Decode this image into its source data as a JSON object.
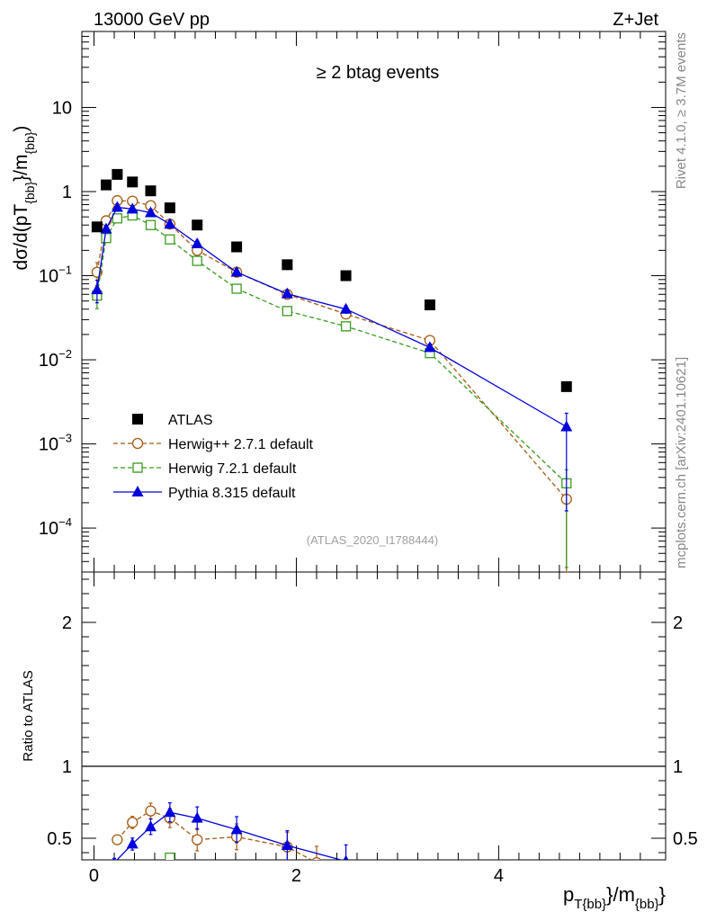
{
  "header": {
    "left": "13000 GeV pp",
    "right": "Z+Jet"
  },
  "side_text": {
    "rivet": "Rivet 4.1.0, ≥ 3.7M events",
    "mcplots": "mcplots.cern.ch [arXiv:2401.10621]"
  },
  "colors": {
    "atlas": "#000000",
    "herwigpp": "#a65a12",
    "herwig7": "#3a9a1e",
    "pythia": "#0000dd"
  },
  "chart_data": [
    {
      "type": "scatter",
      "title": "≥ 2 btag events",
      "analysis_tag": "(ATLAS_2020_I1788444)",
      "ylabel_parts": [
        "dσ/d(pT",
        "{bb}",
        "}/m",
        "{bb}",
        ")"
      ],
      "xlabel_parts": [
        "p",
        "T{bb}",
        "}/m",
        "{bb}",
        "}"
      ],
      "yscale": "log",
      "xlim": [
        -0.12,
        5.65
      ],
      "ylim": [
        3e-05,
        80
      ],
      "y_ticks": [
        {
          "value": 10,
          "base": "10",
          "exp": ""
        },
        {
          "value": 1,
          "base": "1",
          "exp": ""
        },
        {
          "value": 0.1,
          "base": "10",
          "exp": "−1"
        },
        {
          "value": 0.01,
          "base": "10",
          "exp": "−2"
        },
        {
          "value": 0.001,
          "base": "10",
          "exp": "−3"
        },
        {
          "value": 0.0001,
          "base": "10",
          "exp": "−4"
        }
      ],
      "legend": [
        {
          "key": "atlas",
          "label": "ATLAS"
        },
        {
          "key": "herwigpp",
          "label": "Herwig++ 2.7.1 default"
        },
        {
          "key": "herwig7",
          "label": "Herwig 7.2.1 default"
        },
        {
          "key": "pythia",
          "label": "Pythia 8.315 default"
        }
      ],
      "series": [
        {
          "key": "atlas",
          "name": "ATLAS",
          "marker": "square",
          "x": [
            0.03,
            0.12,
            0.23,
            0.38,
            0.56,
            0.75,
            1.02,
            1.41,
            1.91,
            2.49,
            3.32,
            4.67
          ],
          "y": [
            0.38,
            1.2,
            1.6,
            1.3,
            1.02,
            0.64,
            0.4,
            0.22,
            0.135,
            0.1,
            0.045,
            0.0048
          ]
        },
        {
          "key": "herwigpp",
          "name": "Herwig++ 2.7.1 default",
          "marker": "circle",
          "x": [
            0.03,
            0.12,
            0.23,
            0.38,
            0.56,
            0.75,
            1.02,
            1.41,
            1.91,
            2.49,
            3.32,
            4.67
          ],
          "y": [
            0.11,
            0.45,
            0.78,
            0.77,
            0.68,
            0.41,
            0.2,
            0.11,
            0.06,
            0.035,
            0.017,
            0.00022
          ]
        },
        {
          "key": "herwig7",
          "name": "Herwig 7.2.1 default",
          "marker": "open-square",
          "x": [
            0.03,
            0.12,
            0.23,
            0.38,
            0.56,
            0.75,
            1.02,
            1.41,
            1.91,
            2.49,
            3.32,
            4.67
          ],
          "y": [
            0.058,
            0.28,
            0.48,
            0.52,
            0.4,
            0.27,
            0.15,
            0.07,
            0.038,
            0.025,
            0.012,
            0.00034
          ]
        },
        {
          "key": "pythia",
          "name": "Pythia 8.315 default",
          "marker": "triangle",
          "x": [
            0.03,
            0.12,
            0.23,
            0.38,
            0.56,
            0.75,
            1.02,
            1.41,
            1.91,
            2.49,
            3.32,
            4.67
          ],
          "y": [
            0.068,
            0.36,
            0.65,
            0.62,
            0.56,
            0.41,
            0.24,
            0.11,
            0.061,
            0.04,
            0.014,
            0.0016
          ]
        }
      ]
    },
    {
      "type": "scatter",
      "title": "",
      "ylabel": "Ratio to ATLAS",
      "yscale": "linear",
      "xlim": [
        -0.12,
        5.65
      ],
      "ylim": [
        0.35,
        2.35
      ],
      "x_ticks": [
        {
          "value": 0,
          "label": "0"
        },
        {
          "value": 2,
          "label": "2"
        },
        {
          "value": 4,
          "label": "4"
        }
      ],
      "y_ticks": [
        {
          "value": 2,
          "label": "2"
        },
        {
          "value": 1,
          "label": "1"
        },
        {
          "value": 0.5,
          "label": "0.5"
        }
      ],
      "reference_line": 1,
      "series": [
        {
          "key": "herwigpp",
          "name": "Herwig++ 2.7.1 default",
          "marker": "circle",
          "x": [
            0.23,
            0.38,
            0.56,
            0.75,
            1.02,
            1.41,
            1.91,
            2.2
          ],
          "y": [
            0.49,
            0.61,
            0.69,
            0.64,
            0.49,
            0.51,
            0.44,
            0.33
          ]
        },
        {
          "key": "herwig7",
          "name": "Herwig 7.2.1 default",
          "marker": "open-square",
          "x": [
            0.75
          ],
          "y": [
            0.365
          ]
        },
        {
          "key": "pythia",
          "name": "Pythia 8.315 default",
          "marker": "triangle",
          "x": [
            0.2,
            0.38,
            0.56,
            0.75,
            1.02,
            1.41,
            1.91,
            2.49
          ],
          "y": [
            0.33,
            0.46,
            0.58,
            0.68,
            0.64,
            0.56,
            0.45,
            0.34
          ]
        }
      ]
    }
  ]
}
